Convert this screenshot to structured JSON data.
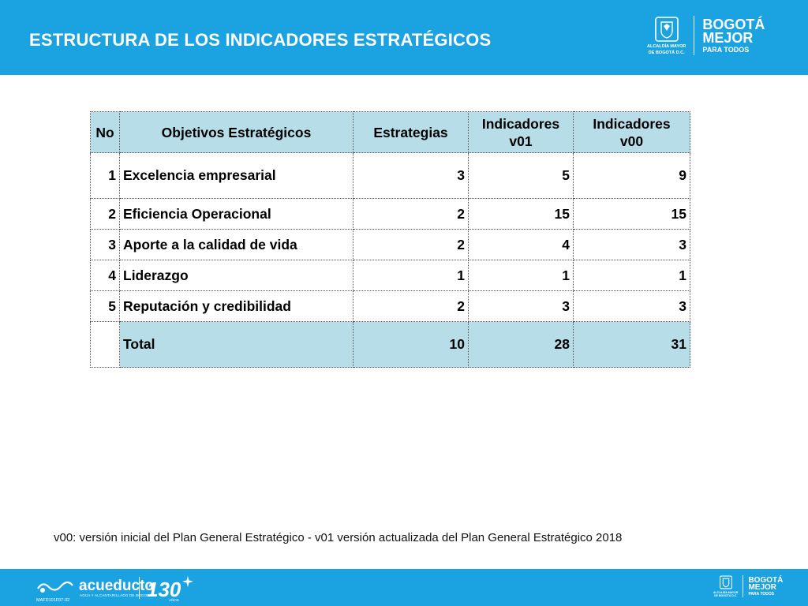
{
  "header": {
    "title": "ESTRUCTURA DE LOS INDICADORES ESTRATÉGICOS",
    "logos": {
      "alcaldia_line1": "ALCALDÍA MAYOR",
      "alcaldia_line2": "DE BOGOTÁ D.C.",
      "bogota_line1": "BOGOTÁ",
      "bogota_line2": "MEJOR",
      "bogota_line3": "PARA TODOS"
    }
  },
  "table": {
    "headers": {
      "no": "No",
      "objetivos": "Objetivos Estratégicos",
      "estrategias": "Estrategias",
      "ind_v01_l1": "Indicadores",
      "ind_v01_l2": "v01",
      "ind_v00_l1": "Indicadores",
      "ind_v00_l2": "v00"
    },
    "rows": [
      {
        "no": "1",
        "objetivo": "Excelencia empresarial",
        "estrategias": "3",
        "v01": "5",
        "v00": "9"
      },
      {
        "no": "2",
        "objetivo": "Eficiencia Operacional",
        "estrategias": "2",
        "v01": "15",
        "v00": "15"
      },
      {
        "no": "3",
        "objetivo": "Aporte a la calidad de vida",
        "estrategias": "2",
        "v01": "4",
        "v00": "3"
      },
      {
        "no": "4",
        "objetivo": "Liderazgo",
        "estrategias": "1",
        "v01": "1",
        "v00": "1"
      },
      {
        "no": "5",
        "objetivo": "Reputación y credibilidad",
        "estrategias": "2",
        "v01": "3",
        "v00": "3"
      }
    ],
    "total": {
      "label": "Total",
      "estrategias": "10",
      "v01": "28",
      "v00": "31"
    }
  },
  "footnote": "v00: versión inicial del Plan General Estratégico  -   v01  versión actualizada del Plan General Estratégico 2018",
  "footer": {
    "acueducto": "acueducto",
    "acueducto_sub": "AGUA Y ALCANTARILLADO DE BOGOTA",
    "anniversary": "130",
    "anniversary_sub": "AÑOS",
    "doc_code": "MAFD101F07-02",
    "logos": {
      "alcaldia_line1": "ALCALDÍA MAYOR",
      "alcaldia_line2": "DE BOGOTÁ D.C.",
      "bogota_line1": "BOGOTÁ",
      "bogota_line2": "MEJOR",
      "bogota_line3": "PARA TODOS"
    }
  }
}
